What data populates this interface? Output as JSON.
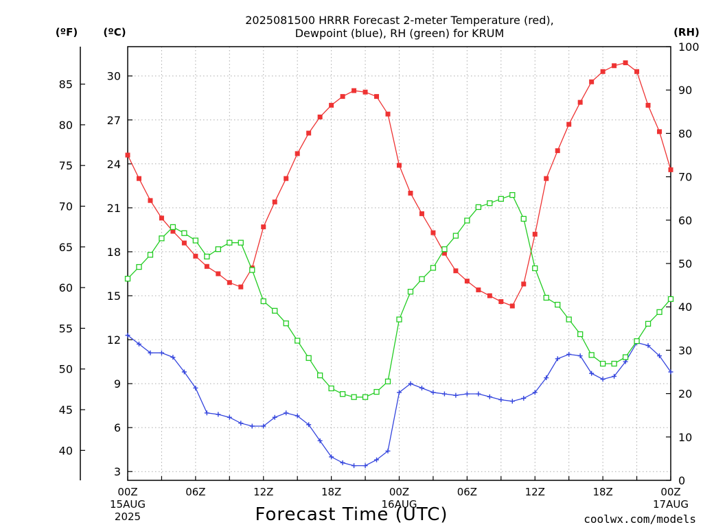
{
  "title_line1": "2025081500 HRRR Forecast 2-meter Temperature (red),",
  "title_line2": "Dewpoint (blue), RH (green) for KRUM",
  "left_outer_unit": "(ºF)",
  "left_inner_unit": "(ºC)",
  "right_unit": "(RH)",
  "xlabel": "Forecast Time (UTC)",
  "credit": "coolwx.com/models",
  "colors": {
    "temperature": "#ee3333",
    "dewpoint": "#3344dd",
    "rh": "#22cc22",
    "grid": "#aaaaaa",
    "credit": "#ee3333"
  },
  "chart_data": {
    "type": "line",
    "x": [
      0,
      1,
      2,
      3,
      4,
      5,
      6,
      7,
      8,
      9,
      10,
      11,
      12,
      13,
      14,
      15,
      16,
      17,
      18,
      19,
      20,
      21,
      22,
      23,
      24,
      25,
      26,
      27,
      28,
      29,
      30,
      31,
      32,
      33,
      34,
      35,
      36,
      37,
      38,
      39,
      40,
      41,
      42,
      43,
      44,
      45,
      46,
      47,
      48
    ],
    "xlim": [
      0,
      48
    ],
    "x_ticks": [
      {
        "x": 0,
        "lines": [
          "00Z",
          "15AUG",
          "2025"
        ]
      },
      {
        "x": 6,
        "lines": [
          "06Z"
        ]
      },
      {
        "x": 12,
        "lines": [
          "12Z"
        ]
      },
      {
        "x": 18,
        "lines": [
          "18Z"
        ]
      },
      {
        "x": 24,
        "lines": [
          "00Z",
          "16AUG"
        ]
      },
      {
        "x": 30,
        "lines": [
          "06Z"
        ]
      },
      {
        "x": 36,
        "lines": [
          "12Z"
        ]
      },
      {
        "x": 42,
        "lines": [
          "18Z"
        ]
      },
      {
        "x": 48,
        "lines": [
          "00Z",
          "17AUG"
        ]
      }
    ],
    "y_celsius": {
      "lim": [
        2.4,
        32.0
      ],
      "ticks": [
        "3",
        "6",
        "9",
        "12",
        "15",
        "18",
        "21",
        "24",
        "27",
        "30"
      ]
    },
    "y_fahrenheit": {
      "ticks": [
        "40",
        "45",
        "50",
        "55",
        "60",
        "65",
        "70",
        "75",
        "80",
        "85"
      ]
    },
    "y_rh": {
      "lim": [
        0,
        100
      ],
      "ticks": [
        "0",
        "10",
        "20",
        "30",
        "40",
        "50",
        "60",
        "70",
        "80",
        "90",
        "100"
      ]
    },
    "grid": true,
    "series": [
      {
        "axis": "celsius",
        "marker": "filled-square",
        "values": [
          24.6,
          23.0,
          21.5,
          20.3,
          19.4,
          18.6,
          17.7,
          17.0,
          16.5,
          15.9,
          15.6,
          16.9,
          19.7,
          21.4,
          23.0,
          24.7,
          26.1,
          27.2,
          28.0,
          28.6,
          29.0,
          28.9,
          28.6,
          27.4,
          23.9,
          22.0,
          20.6,
          19.3,
          17.9,
          16.7,
          16.0,
          15.4,
          15.0,
          14.6,
          14.3,
          15.8,
          19.2,
          23.0,
          24.9,
          26.7,
          28.2,
          29.6,
          30.3,
          30.7,
          30.9,
          30.3,
          28.0,
          26.2,
          23.6
        ]
      },
      {
        "axis": "celsius",
        "marker": "plus",
        "values": [
          12.3,
          11.7,
          11.1,
          11.1,
          10.8,
          9.8,
          8.7,
          7.0,
          6.9,
          6.7,
          6.3,
          6.1,
          6.1,
          6.7,
          7.0,
          6.8,
          6.2,
          5.1,
          4.0,
          3.6,
          3.4,
          3.4,
          3.8,
          4.4,
          8.4,
          9.0,
          8.7,
          8.4,
          8.3,
          8.2,
          8.3,
          8.3,
          8.1,
          7.9,
          7.8,
          8.0,
          8.4,
          9.4,
          10.7,
          11.0,
          10.9,
          9.7,
          9.3,
          9.5,
          10.5,
          11.8,
          11.6,
          10.9,
          9.8
        ]
      },
      {
        "axis": "rh",
        "marker": "open-square",
        "values": [
          46.5,
          49.2,
          52.0,
          55.8,
          58.4,
          57.0,
          55.3,
          51.6,
          53.3,
          54.8,
          54.8,
          48.5,
          41.3,
          39.1,
          36.2,
          32.2,
          28.2,
          24.2,
          21.2,
          19.9,
          19.2,
          19.2,
          20.4,
          22.8,
          37.1,
          43.5,
          46.4,
          49.0,
          53.3,
          56.4,
          59.9,
          63.0,
          63.9,
          64.9,
          65.8,
          60.3,
          48.9,
          42.1,
          40.5,
          37.1,
          33.7,
          28.9,
          26.9,
          26.9,
          28.4,
          32.1,
          36.1,
          38.8,
          41.8
        ]
      }
    ]
  }
}
